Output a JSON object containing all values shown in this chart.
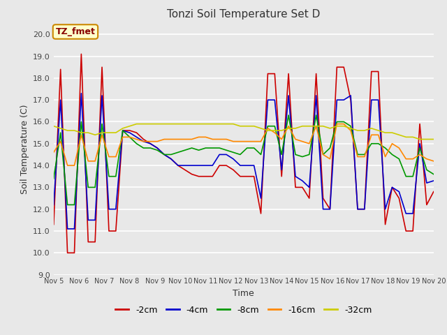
{
  "title": "Tonzi Soil Temperature Set D",
  "xlabel": "Time",
  "ylabel": "Soil Temperature (C)",
  "ylim": [
    9.0,
    20.5
  ],
  "yticks": [
    9.0,
    10.0,
    11.0,
    12.0,
    13.0,
    14.0,
    15.0,
    16.0,
    17.0,
    18.0,
    19.0,
    20.0
  ],
  "background_color": "#e8e8e8",
  "plot_bg_color": "#e8e8e8",
  "legend_labels": [
    "-2cm",
    "-4cm",
    "-8cm",
    "-16cm",
    "-32cm"
  ],
  "legend_colors": [
    "#cc0000",
    "#0000cc",
    "#009900",
    "#ff8800",
    "#cccc00"
  ],
  "annotation_text": "TZ_fmet",
  "annotation_bg": "#ffffcc",
  "annotation_border": "#cc8800",
  "annotation_text_color": "#880000",
  "xtick_labels": [
    "Nov 5",
    "Nov 6",
    "Nov 7",
    "Nov 8",
    "Nov 9",
    "Nov 10",
    "Nov 11",
    "Nov 12",
    "Nov 13",
    "Nov 14",
    "Nov 15",
    "Nov 16",
    "Nov 17",
    "Nov 18",
    "Nov 19",
    "Nov 20"
  ],
  "series": {
    "neg2cm": [
      11.3,
      18.4,
      10.0,
      10.0,
      19.1,
      10.5,
      10.5,
      18.5,
      11.0,
      11.0,
      15.6,
      15.6,
      15.5,
      15.2,
      15.0,
      14.8,
      14.5,
      14.3,
      14.0,
      13.8,
      13.6,
      13.5,
      13.5,
      13.5,
      14.0,
      14.0,
      13.8,
      13.5,
      13.5,
      13.5,
      11.8,
      18.2,
      18.2,
      13.5,
      18.2,
      13.0,
      13.0,
      12.5,
      18.2,
      12.5,
      12.0,
      18.5,
      18.5,
      17.0,
      12.0,
      12.0,
      18.3,
      18.3,
      11.3,
      13.0,
      12.5,
      11.0,
      11.0,
      15.9,
      12.2,
      12.8
    ],
    "neg4cm": [
      12.2,
      17.0,
      11.1,
      11.1,
      17.3,
      11.5,
      11.5,
      17.2,
      12.0,
      12.0,
      15.6,
      15.5,
      15.3,
      15.1,
      15.0,
      14.8,
      14.5,
      14.3,
      14.0,
      14.0,
      14.0,
      14.0,
      14.0,
      14.0,
      14.5,
      14.5,
      14.3,
      14.0,
      14.0,
      14.0,
      12.5,
      17.0,
      17.0,
      13.8,
      17.2,
      13.5,
      13.3,
      13.0,
      17.2,
      12.0,
      12.0,
      17.0,
      17.0,
      17.2,
      12.0,
      12.0,
      17.0,
      17.0,
      12.0,
      13.0,
      12.8,
      11.8,
      11.8,
      15.0,
      13.2,
      13.3
    ],
    "neg8cm": [
      13.4,
      15.5,
      12.2,
      12.2,
      16.0,
      13.0,
      13.0,
      15.9,
      13.5,
      13.5,
      15.6,
      15.3,
      15.0,
      14.8,
      14.8,
      14.7,
      14.5,
      14.5,
      14.6,
      14.7,
      14.8,
      14.7,
      14.8,
      14.8,
      14.8,
      14.7,
      14.6,
      14.5,
      14.8,
      14.8,
      14.5,
      15.8,
      15.8,
      14.5,
      16.3,
      14.5,
      14.4,
      14.5,
      16.3,
      14.5,
      14.8,
      16.0,
      16.0,
      15.8,
      14.5,
      14.5,
      15.0,
      15.0,
      14.8,
      14.5,
      14.3,
      13.5,
      13.5,
      14.8,
      13.8,
      13.6
    ],
    "neg16cm": [
      14.6,
      15.1,
      14.0,
      14.0,
      15.4,
      14.2,
      14.2,
      15.4,
      14.4,
      14.4,
      15.3,
      15.3,
      15.2,
      15.1,
      15.1,
      15.1,
      15.2,
      15.2,
      15.2,
      15.2,
      15.2,
      15.3,
      15.3,
      15.2,
      15.2,
      15.2,
      15.1,
      15.1,
      15.1,
      15.1,
      15.1,
      15.7,
      15.5,
      15.2,
      15.8,
      15.2,
      15.1,
      15.0,
      15.8,
      14.5,
      14.3,
      15.9,
      15.9,
      15.6,
      14.4,
      14.4,
      15.4,
      15.4,
      14.4,
      15.0,
      14.8,
      14.3,
      14.3,
      14.5,
      14.3,
      14.2
    ],
    "neg32cm": [
      15.8,
      15.7,
      15.6,
      15.6,
      15.5,
      15.5,
      15.4,
      15.5,
      15.5,
      15.5,
      15.7,
      15.8,
      15.9,
      15.9,
      15.9,
      15.9,
      15.9,
      15.9,
      15.9,
      15.9,
      15.9,
      15.9,
      15.9,
      15.9,
      15.9,
      15.9,
      15.9,
      15.8,
      15.8,
      15.8,
      15.7,
      15.6,
      15.6,
      15.6,
      15.7,
      15.7,
      15.8,
      15.8,
      15.8,
      15.8,
      15.7,
      15.8,
      15.8,
      15.7,
      15.6,
      15.6,
      15.7,
      15.6,
      15.5,
      15.5,
      15.4,
      15.3,
      15.3,
      15.2,
      15.2,
      15.2
    ]
  }
}
